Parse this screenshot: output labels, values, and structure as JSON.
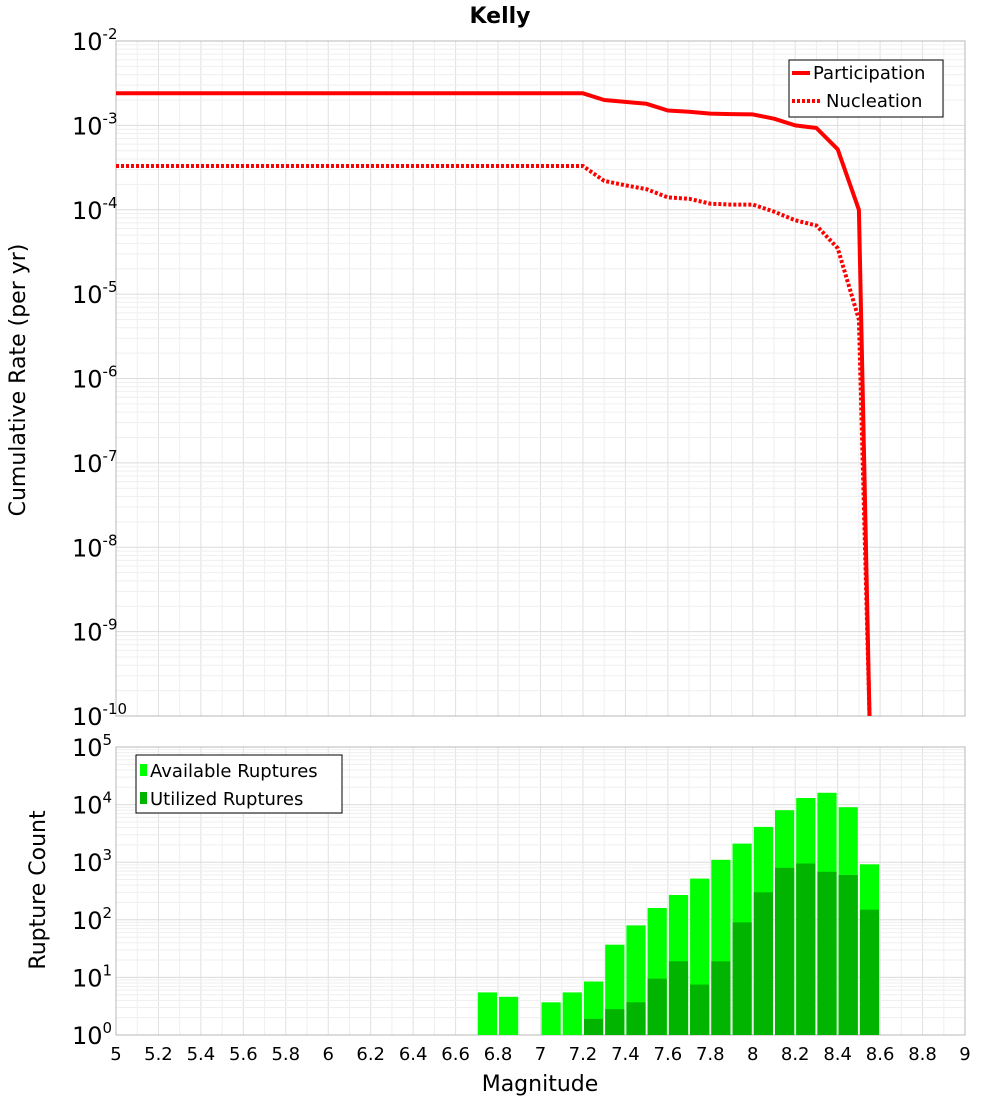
{
  "chart_data": [
    {
      "type": "line",
      "title": "Kelly",
      "xlabel": "Magnitude",
      "ylabel": "Cumulative Rate (per yr)",
      "yscale": "log",
      "xlim": [
        5,
        9
      ],
      "ylim_exponents": [
        -10,
        -2
      ],
      "y_ticks": [
        {
          "base": "10",
          "exp": "-2"
        },
        {
          "base": "10",
          "exp": "-3"
        },
        {
          "base": "10",
          "exp": "-4"
        },
        {
          "base": "10",
          "exp": "-5"
        },
        {
          "base": "10",
          "exp": "-6"
        },
        {
          "base": "10",
          "exp": "-7"
        },
        {
          "base": "10",
          "exp": "-8"
        },
        {
          "base": "10",
          "exp": "-9"
        },
        {
          "base": "10",
          "exp": "-10"
        }
      ],
      "legend": {
        "position": "top-right",
        "entries": [
          "Participation",
          "Nucleation"
        ]
      },
      "series": [
        {
          "name": "Participation",
          "color": "#ff0000",
          "style": "solid",
          "x": [
            5.0,
            7.2,
            7.3,
            7.4,
            7.5,
            7.6,
            7.7,
            7.8,
            7.9,
            8.0,
            8.1,
            8.2,
            8.3,
            8.4,
            8.5,
            8.55
          ],
          "y": [
            0.0024,
            0.0024,
            0.002,
            0.0019,
            0.0018,
            0.0015,
            0.00145,
            0.00138,
            0.00136,
            0.00135,
            0.0012,
            0.001,
            0.00093,
            0.00052,
            0.0001,
            1e-10
          ]
        },
        {
          "name": "Nucleation",
          "color": "#ff0000",
          "style": "dotted",
          "x": [
            5.0,
            7.2,
            7.3,
            7.4,
            7.5,
            7.6,
            7.7,
            7.8,
            7.9,
            8.0,
            8.1,
            8.2,
            8.3,
            8.4,
            8.5,
            8.55
          ],
          "y": [
            0.00033,
            0.00033,
            0.00022,
            0.000195,
            0.000175,
            0.00014,
            0.000135,
            0.000118,
            0.000115,
            0.000115,
            9.5e-05,
            7.5e-05,
            6.5e-05,
            3.5e-05,
            5e-06,
            1e-10
          ]
        }
      ]
    },
    {
      "type": "bar",
      "ylabel": "Rupture Count",
      "xlabel": "Magnitude",
      "yscale": "log",
      "xlim": [
        5,
        9
      ],
      "ylim_exponents": [
        0,
        5
      ],
      "x_ticks": [
        "5",
        "5.2",
        "5.4",
        "5.6",
        "5.8",
        "6",
        "6.2",
        "6.4",
        "6.6",
        "6.8",
        "7",
        "7.2",
        "7.4",
        "7.6",
        "7.8",
        "8",
        "8.2",
        "8.4",
        "8.6",
        "8.8",
        "9"
      ],
      "y_ticks": [
        {
          "base": "10",
          "exp": "5"
        },
        {
          "base": "10",
          "exp": "4"
        },
        {
          "base": "10",
          "exp": "3"
        },
        {
          "base": "10",
          "exp": "2"
        },
        {
          "base": "10",
          "exp": "1"
        },
        {
          "base": "10",
          "exp": "0"
        }
      ],
      "legend": {
        "position": "top-left",
        "entries": [
          "Available Ruptures",
          "Utilized Ruptures"
        ]
      },
      "bin_width": 0.1,
      "series": [
        {
          "name": "Available Ruptures",
          "color": "#00ff00",
          "x": [
            6.75,
            6.85,
            7.05,
            7.15,
            7.25,
            7.35,
            7.45,
            7.55,
            7.65,
            7.75,
            7.85,
            7.95,
            8.05,
            8.15,
            8.25,
            8.35,
            8.45,
            8.55
          ],
          "y": [
            5.5,
            4.6,
            3.7,
            5.5,
            8.5,
            37,
            80,
            160,
            270,
            520,
            1100,
            2100,
            4100,
            8000,
            13000,
            16000,
            9000,
            920
          ]
        },
        {
          "name": "Utilized Ruptures",
          "color": "#00b400",
          "x": [
            7.25,
            7.35,
            7.45,
            7.55,
            7.65,
            7.75,
            7.85,
            7.95,
            8.05,
            8.15,
            8.25,
            8.35,
            8.45,
            8.55
          ],
          "y": [
            1.9,
            2.8,
            3.7,
            9.5,
            19,
            7.5,
            19,
            90,
            300,
            800,
            950,
            680,
            600,
            150
          ]
        }
      ]
    }
  ]
}
